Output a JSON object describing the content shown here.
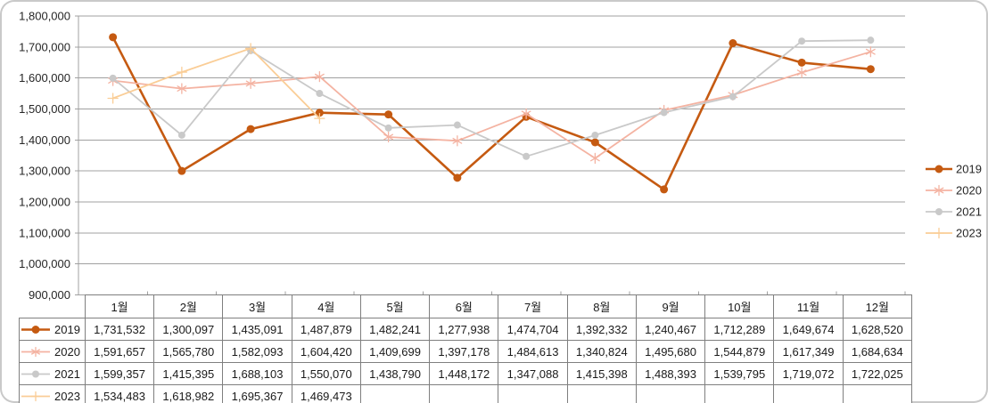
{
  "frame": {
    "background": "#FFFFFF",
    "border_color": "#C9C9C9"
  },
  "chart_data": {
    "type": "line",
    "title": "",
    "categories": [
      "1월",
      "2월",
      "3월",
      "4월",
      "5월",
      "6월",
      "7월",
      "8월",
      "9월",
      "10월",
      "11월",
      "12월"
    ],
    "series": [
      {
        "name": "2019",
        "color": "#C55A11",
        "marker": "circle",
        "line_width": 2.6,
        "marker_size": 4.5,
        "values": [
          1731532,
          1300097,
          1435091,
          1487879,
          1482241,
          1277938,
          1474704,
          1392332,
          1240467,
          1712289,
          1649674,
          1628520
        ]
      },
      {
        "name": "2020",
        "color": "#F4B3A2",
        "marker": "asterisk",
        "line_width": 1.8,
        "marker_size": 5.5,
        "values": [
          1591657,
          1565780,
          1582093,
          1604420,
          1409699,
          1397178,
          1484613,
          1340824,
          1495680,
          1544879,
          1617349,
          1684634
        ]
      },
      {
        "name": "2021",
        "color": "#C9C9C9",
        "marker": "circle",
        "line_width": 1.8,
        "marker_size": 4,
        "values": [
          1599357,
          1415395,
          1688103,
          1550070,
          1438790,
          1448172,
          1347088,
          1415398,
          1488393,
          1539795,
          1719072,
          1722025
        ]
      },
      {
        "name": "2023",
        "color": "#FACD96",
        "marker": "plus",
        "line_width": 1.8,
        "marker_size": 5.5,
        "values": [
          1534483,
          1618982,
          1695367,
          1469473,
          null,
          null,
          null,
          null,
          null,
          null,
          null,
          null
        ]
      }
    ],
    "y_axis": {
      "min": 900000,
      "max": 1800000,
      "step": 100000
    },
    "ylim": [
      900000,
      1800000
    ],
    "legend": {
      "position": "right",
      "entries": [
        "2019",
        "2020",
        "2021",
        "2023"
      ]
    },
    "gridlines": true,
    "gridline_color": "#A0A0A0",
    "axis_text_color": "#262626"
  },
  "table": {
    "border_color": "#7F7F7F",
    "row_headers": [
      "2019",
      "2020",
      "2021",
      "2023"
    ],
    "column_headers": [
      "1월",
      "2월",
      "3월",
      "4월",
      "5월",
      "6월",
      "7월",
      "8월",
      "9월",
      "10월",
      "11월",
      "12월"
    ]
  }
}
